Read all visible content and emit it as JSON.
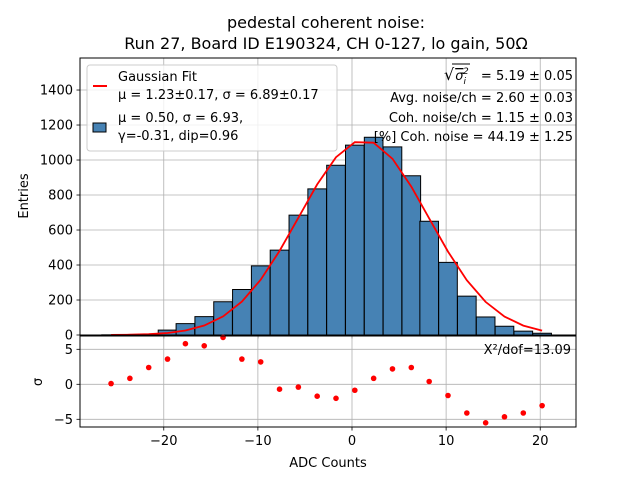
{
  "chart_data": {
    "type": "bar",
    "title_lines": [
      "pedestal coherent noise:",
      "Run 27, Board ID E190324, CH 0-127, lo gain, 50Ω"
    ],
    "top_panel": {
      "ylabel": "Entries",
      "xlim": [
        -28.9,
        23.8
      ],
      "ylim": [
        0,
        1583
      ],
      "yticks": [
        0,
        200,
        400,
        600,
        800,
        1000,
        1200,
        1400
      ],
      "xticks": [
        -20,
        -10,
        0,
        10,
        20
      ],
      "grid": true,
      "bin_width": 1.98,
      "bin_centers": [
        -25.6,
        -23.6,
        -21.6,
        -19.6,
        -17.7,
        -15.7,
        -13.7,
        -11.7,
        -9.7,
        -7.7,
        -5.7,
        -3.7,
        -1.7,
        0.3,
        2.3,
        4.3,
        6.3,
        8.2,
        10.2,
        12.2,
        14.2,
        16.2,
        18.2,
        20.2
      ],
      "histogram": {
        "name": "μ = 0.50, σ = 6.93, γ=-0.31, dip=0.96",
        "color": "#4682b4",
        "edgecolor": "#000000",
        "values": [
          1,
          1,
          5,
          28,
          65,
          105,
          190,
          260,
          395,
          485,
          685,
          835,
          970,
          1085,
          1130,
          1075,
          910,
          650,
          415,
          222,
          103,
          50,
          22,
          10
        ]
      },
      "fit": {
        "name": "Gaussian Fit",
        "params_text": "μ = 1.23±0.17, σ = 6.89±0.17",
        "color": "#ff0000",
        "mu": 1.23,
        "sigma": 6.89,
        "amplitude": 1112
      },
      "legend": {
        "placement": "top-left",
        "entries": [
          {
            "label_lines": [
              "Gaussian Fit",
              "μ = 1.23±0.17, σ = 6.89±0.17"
            ],
            "kind": "line"
          },
          {
            "label_lines": [
              "μ = 0.50, σ = 6.93,",
              "γ=-0.31, dip=0.96"
            ],
            "kind": "patch"
          }
        ]
      },
      "annotations": {
        "placement": "top-right",
        "sigma_i_label": "= 5.19 ± 0.05",
        "lines": [
          "Avg. noise/ch = 2.60 ± 0.03",
          "Coh. noise/ch = 1.15 ± 0.03",
          "[%] Coh. noise = 44.19  ± 1.25"
        ]
      }
    },
    "bottom_panel": {
      "type": "scatter",
      "ylabel": "σ",
      "xlabel": "ADC Counts",
      "ylim": [
        -6.1,
        6.9
      ],
      "yticks": [
        -5,
        0,
        5
      ],
      "ytick_labels": [
        "−5",
        "0",
        "5"
      ],
      "xticks": [
        -20,
        -10,
        0,
        10,
        20
      ],
      "xtick_labels": [
        "−20",
        "−10",
        "0",
        "10",
        "20"
      ],
      "color": "#ff0000",
      "residuals": [
        0.1,
        0.85,
        2.4,
        3.6,
        5.8,
        5.5,
        6.7,
        3.6,
        3.2,
        -0.7,
        -0.4,
        -1.7,
        -2.0,
        -0.85,
        0.85,
        2.2,
        2.4,
        0.4,
        -1.6,
        -4.1,
        -5.5,
        -4.65,
        -4.1,
        -3.05
      ],
      "annotation": "X²/dof=13.09"
    }
  }
}
